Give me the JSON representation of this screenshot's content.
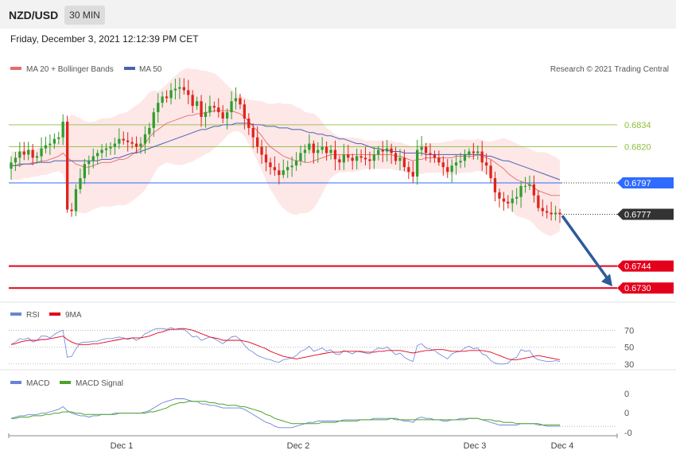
{
  "header": {
    "pair": "NZD/USD",
    "timeframe": "30 MIN",
    "datetime": "Friday, December 3, 2021 12:12:39 PM CET"
  },
  "legend": {
    "ma20": "MA 20 + Bollinger Bands",
    "ma50": "MA 50",
    "credit": "Research © 2021 Trading Central",
    "rsi": "RSI",
    "rsi9": "9MA",
    "macd": "MACD",
    "macd_signal": "MACD Signal"
  },
  "colors": {
    "bull": "#2e9e2e",
    "bear": "#e0231c",
    "ma20": "#e86a6a",
    "ma50": "#4a63b0",
    "band": "#fde3e3",
    "resistance": "#8dbf3c",
    "pivot": "#2f6bff",
    "current": "#333333",
    "support": "#e3001b",
    "arrow": "#2e5b9a",
    "rsi": "#6b83d6",
    "rsi9": "#e3001b",
    "macd": "#6b83d6",
    "macd_signal": "#4ca22a"
  },
  "chart_data": [
    {
      "type": "candlestick",
      "title": "NZD/USD",
      "timeframe": "30 MIN",
      "ylim": [
        0.6722,
        0.6874
      ],
      "levels": [
        {
          "label": "0.6834",
          "value": 0.6834,
          "kind": "resistance"
        },
        {
          "label": "0.6820",
          "value": 0.682,
          "kind": "resistance"
        },
        {
          "label": "0.6797",
          "value": 0.6797,
          "kind": "pivot"
        },
        {
          "label": "0.6777",
          "value": 0.6777,
          "kind": "current"
        },
        {
          "label": "0.6744",
          "value": 0.6744,
          "kind": "support"
        },
        {
          "label": "0.6730",
          "value": 0.673,
          "kind": "support"
        }
      ],
      "arrow": {
        "from": 0.6777,
        "to": 0.6731,
        "direction": "down"
      },
      "x_labels": [
        "Dec 1",
        "Dec 2",
        "Dec 3",
        "Dec 4"
      ],
      "close": [
        0.681,
        0.6813,
        0.6817,
        0.6815,
        0.6818,
        0.6813,
        0.6814,
        0.6819,
        0.6821,
        0.6822,
        0.6825,
        0.6826,
        0.6836,
        0.678,
        0.6779,
        0.6793,
        0.68,
        0.6809,
        0.6811,
        0.6814,
        0.6816,
        0.6818,
        0.6819,
        0.682,
        0.6822,
        0.6825,
        0.6824,
        0.6823,
        0.6822,
        0.682,
        0.6822,
        0.6828,
        0.6832,
        0.6842,
        0.6848,
        0.6852,
        0.6851,
        0.6856,
        0.6857,
        0.6858,
        0.6856,
        0.6853,
        0.6846,
        0.6849,
        0.6839,
        0.6842,
        0.6846,
        0.6845,
        0.6842,
        0.6838,
        0.6842,
        0.6849,
        0.6851,
        0.6847,
        0.6838,
        0.6832,
        0.6826,
        0.682,
        0.6815,
        0.681,
        0.6807,
        0.6805,
        0.6802,
        0.6805,
        0.6807,
        0.6808,
        0.6811,
        0.6816,
        0.6818,
        0.6822,
        0.6816,
        0.6818,
        0.682,
        0.6816,
        0.6818,
        0.6812,
        0.681,
        0.6815,
        0.6813,
        0.6811,
        0.6814,
        0.6813,
        0.6812,
        0.6811,
        0.6815,
        0.6818,
        0.6817,
        0.6819,
        0.6816,
        0.6811,
        0.6813,
        0.6807,
        0.6804,
        0.6801,
        0.6818,
        0.682,
        0.6816,
        0.6815,
        0.6813,
        0.681,
        0.6807,
        0.6804,
        0.6808,
        0.681,
        0.6811,
        0.6815,
        0.6817,
        0.6816,
        0.6817,
        0.681,
        0.6808,
        0.68,
        0.6791,
        0.6787,
        0.6785,
        0.6784,
        0.6787,
        0.6788,
        0.6795,
        0.6795,
        0.6796,
        0.6789,
        0.6781,
        0.6779,
        0.6778,
        0.6777,
        0.6778,
        0.6777
      ],
      "ma20": [
        0.6808,
        0.6808,
        0.6808,
        0.6809,
        0.6809,
        0.681,
        0.681,
        0.6811,
        0.6811,
        0.6812,
        0.6813,
        0.6814,
        0.6816,
        0.6813,
        0.6811,
        0.6809,
        0.6808,
        0.6807,
        0.6807,
        0.6808,
        0.6809,
        0.681,
        0.681,
        0.681,
        0.6811,
        0.6812,
        0.6812,
        0.6813,
        0.6815,
        0.6817,
        0.6819,
        0.6822,
        0.6826,
        0.6829,
        0.6831,
        0.6833,
        0.6835,
        0.6836,
        0.6837,
        0.6838,
        0.6839,
        0.684,
        0.684,
        0.6841,
        0.6841,
        0.6842,
        0.6842,
        0.6843,
        0.6843,
        0.6843,
        0.6843,
        0.6843,
        0.6842,
        0.6841,
        0.6839,
        0.6836,
        0.6833,
        0.683,
        0.6827,
        0.6823,
        0.682,
        0.6818,
        0.6816,
        0.6814,
        0.6813,
        0.6812,
        0.6811,
        0.6811,
        0.681,
        0.681,
        0.6811,
        0.6812,
        0.6813,
        0.6814,
        0.6815,
        0.6815,
        0.6815,
        0.6815,
        0.6815,
        0.6815,
        0.6815,
        0.6815,
        0.6815,
        0.6815,
        0.6815,
        0.6815,
        0.6815,
        0.6815,
        0.6815,
        0.6814,
        0.6814,
        0.6813,
        0.6812,
        0.6811,
        0.6812,
        0.6812,
        0.6813,
        0.6813,
        0.6813,
        0.6813,
        0.6813,
        0.6813,
        0.6813,
        0.6814,
        0.6814,
        0.6814,
        0.6814,
        0.6814,
        0.6815,
        0.6814,
        0.6813,
        0.6812,
        0.681,
        0.6808,
        0.6806,
        0.6803,
        0.6801,
        0.6799,
        0.6798,
        0.6797,
        0.6796,
        0.6794,
        0.6792,
        0.6791,
        0.679,
        0.6789,
        0.6789,
        0.6789
      ],
      "ma50": [
        0.6808,
        0.6808,
        0.6809,
        0.6809,
        0.6809,
        0.6809,
        0.681,
        0.681,
        0.681,
        0.681,
        0.6811,
        0.6811,
        0.6811,
        0.6811,
        0.6811,
        0.6811,
        0.6811,
        0.6811,
        0.6811,
        0.6811,
        0.6811,
        0.6812,
        0.6812,
        0.6812,
        0.6813,
        0.6813,
        0.6814,
        0.6815,
        0.6816,
        0.6816,
        0.6817,
        0.6818,
        0.6819,
        0.682,
        0.6821,
        0.6822,
        0.6823,
        0.6824,
        0.6825,
        0.6826,
        0.6827,
        0.6828,
        0.6829,
        0.683,
        0.6831,
        0.6831,
        0.6832,
        0.6833,
        0.6833,
        0.6834,
        0.6834,
        0.6834,
        0.6835,
        0.6835,
        0.6835,
        0.6835,
        0.6834,
        0.6834,
        0.6834,
        0.6833,
        0.6833,
        0.6833,
        0.6832,
        0.6832,
        0.6832,
        0.6831,
        0.6831,
        0.6831,
        0.683,
        0.6829,
        0.6829,
        0.6828,
        0.6828,
        0.6827,
        0.6827,
        0.6826,
        0.6825,
        0.6825,
        0.6824,
        0.6823,
        0.6822,
        0.6822,
        0.6821,
        0.682,
        0.6819,
        0.6819,
        0.6818,
        0.6818,
        0.6817,
        0.6817,
        0.6817,
        0.6816,
        0.6816,
        0.6816,
        0.6816,
        0.6816,
        0.6815,
        0.6815,
        0.6815,
        0.6815,
        0.6815,
        0.6815,
        0.6815,
        0.6815,
        0.6815,
        0.6815,
        0.6815,
        0.6815,
        0.6815,
        0.6815,
        0.6814,
        0.6814,
        0.6813,
        0.6812,
        0.6811,
        0.6811,
        0.681,
        0.6809,
        0.6808,
        0.6807,
        0.6806,
        0.6805,
        0.6804,
        0.6803,
        0.6802,
        0.6801,
        0.68,
        0.6799
      ]
    },
    {
      "type": "line",
      "title": "RSI",
      "levels": [
        70,
        50,
        30
      ],
      "ylim": [
        26,
        75
      ],
      "series": [
        {
          "name": "RSI",
          "values": [
            53,
            56,
            60,
            59,
            61,
            56,
            58,
            63,
            63,
            61,
            65,
            68,
            70,
            38,
            39,
            48,
            55,
            56,
            56,
            57,
            57,
            59,
            60,
            60,
            61,
            62,
            61,
            59,
            61,
            58,
            61,
            66,
            68,
            71,
            72,
            72,
            71,
            73,
            71,
            71,
            71,
            67,
            62,
            63,
            58,
            60,
            62,
            60,
            57,
            54,
            58,
            62,
            63,
            59,
            52,
            47,
            44,
            40,
            38,
            36,
            35,
            33,
            32,
            35,
            36,
            37,
            40,
            45,
            47,
            51,
            45,
            47,
            49,
            45,
            47,
            42,
            41,
            46,
            44,
            42,
            45,
            44,
            43,
            42,
            46,
            49,
            48,
            50,
            46,
            41,
            43,
            38,
            35,
            33,
            52,
            54,
            49,
            48,
            46,
            42,
            39,
            36,
            42,
            44,
            45,
            49,
            51,
            48,
            49,
            42,
            40,
            34,
            31,
            30,
            30,
            31,
            36,
            38,
            47,
            45,
            46,
            38,
            35,
            34,
            33,
            33,
            34,
            33
          ]
        },
        {
          "name": "9MA",
          "values": [
            53,
            54,
            56,
            57,
            58,
            58,
            58,
            59,
            59,
            60,
            61,
            62,
            63,
            59,
            56,
            54,
            53,
            53,
            53,
            54,
            54,
            55,
            56,
            57,
            58,
            59,
            60,
            60,
            61,
            61,
            61,
            62,
            63,
            65,
            67,
            68,
            70,
            71,
            71,
            72,
            72,
            71,
            70,
            68,
            66,
            64,
            62,
            61,
            60,
            58,
            58,
            58,
            58,
            58,
            57,
            56,
            54,
            52,
            50,
            48,
            45,
            43,
            41,
            39,
            38,
            37,
            36,
            37,
            38,
            39,
            40,
            41,
            42,
            43,
            44,
            44,
            44,
            45,
            45,
            45,
            45,
            45,
            44,
            44,
            44,
            45,
            45,
            46,
            46,
            46,
            46,
            45,
            44,
            43,
            44,
            45,
            46,
            46,
            47,
            47,
            47,
            46,
            45,
            45,
            45,
            45,
            46,
            46,
            46,
            46,
            45,
            44,
            42,
            40,
            38,
            36,
            35,
            35,
            36,
            37,
            38,
            39,
            40,
            39,
            38,
            37,
            36,
            35
          ]
        }
      ]
    },
    {
      "type": "line",
      "title": "MACD",
      "tick_labels": [
        "0",
        "0",
        "-0"
      ],
      "ylim": [
        -0.0012,
        0.0022
      ],
      "series": [
        {
          "name": "MACD",
          "values": [
            0.0,
            0.0001,
            0.0002,
            0.0002,
            0.0003,
            0.0003,
            0.0003,
            0.0004,
            0.0004,
            0.0005,
            0.0006,
            0.0007,
            0.0009,
            0.0006,
            0.0004,
            0.0003,
            0.0002,
            0.0002,
            0.0001,
            0.0002,
            0.0002,
            0.0003,
            0.0003,
            0.0003,
            0.0004,
            0.0004,
            0.0004,
            0.0004,
            0.0004,
            0.0004,
            0.0004,
            0.0005,
            0.0006,
            0.0008,
            0.001,
            0.0012,
            0.0013,
            0.0014,
            0.0015,
            0.0015,
            0.0015,
            0.0014,
            0.0013,
            0.0013,
            0.0011,
            0.0011,
            0.001,
            0.001,
            0.0009,
            0.0008,
            0.0008,
            0.0008,
            0.0008,
            0.0008,
            0.0007,
            0.0005,
            0.0003,
            0.0001,
            -0.0001,
            -0.0003,
            -0.0004,
            -0.0006,
            -0.0007,
            -0.0007,
            -0.0007,
            -0.0007,
            -0.0006,
            -0.0005,
            -0.0004,
            -0.0003,
            -0.0003,
            -0.0002,
            -0.0002,
            -0.0002,
            -0.0002,
            -0.0002,
            -0.0002,
            -0.0001,
            -0.0001,
            -0.0001,
            -0.0001,
            -0.0001,
            -0.0001,
            -0.0001,
            0.0,
            0.0,
            0.0,
            0.0,
            0.0,
            -0.0001,
            -0.0001,
            -0.0002,
            -0.0002,
            -0.0003,
            0.0,
            0.0001,
            0.0,
            0.0,
            -0.0001,
            -0.0001,
            -0.0002,
            -0.0002,
            -0.0001,
            -0.0001,
            0.0,
            0.0,
            0.0,
            0.0,
            0.0,
            -0.0001,
            -0.0002,
            -0.0003,
            -0.0004,
            -0.0005,
            -0.0005,
            -0.0005,
            -0.0005,
            -0.0005,
            -0.0004,
            -0.0004,
            -0.0004,
            -0.0004,
            -0.0005,
            -0.0005,
            -0.0006,
            -0.0006,
            -0.0006,
            -0.0006
          ]
        },
        {
          "name": "MACD Signal",
          "values": [
            0.0,
            0.0,
            0.0001,
            0.0001,
            0.0001,
            0.0002,
            0.0002,
            0.0002,
            0.0003,
            0.0003,
            0.0004,
            0.0004,
            0.0005,
            0.0005,
            0.0005,
            0.0004,
            0.0004,
            0.0003,
            0.0003,
            0.0003,
            0.0003,
            0.0003,
            0.0003,
            0.0003,
            0.0003,
            0.0004,
            0.0004,
            0.0004,
            0.0004,
            0.0004,
            0.0004,
            0.0004,
            0.0005,
            0.0005,
            0.0006,
            0.0007,
            0.0008,
            0.001,
            0.0011,
            0.0012,
            0.0012,
            0.0013,
            0.0013,
            0.0013,
            0.0013,
            0.0013,
            0.0012,
            0.0012,
            0.0011,
            0.0011,
            0.001,
            0.001,
            0.001,
            0.0009,
            0.0009,
            0.0008,
            0.0007,
            0.0006,
            0.0005,
            0.0003,
            0.0002,
            0.0,
            -0.0001,
            -0.0002,
            -0.0003,
            -0.0004,
            -0.0004,
            -0.0004,
            -0.0004,
            -0.0004,
            -0.0004,
            -0.0004,
            -0.0003,
            -0.0003,
            -0.0003,
            -0.0003,
            -0.0002,
            -0.0002,
            -0.0002,
            -0.0002,
            -0.0002,
            -0.0001,
            -0.0001,
            -0.0001,
            -0.0001,
            -0.0001,
            -0.0001,
            -0.0001,
            0.0,
            0.0,
            -0.0001,
            -0.0001,
            -0.0001,
            -0.0001,
            -0.0001,
            -0.0001,
            -0.0001,
            -0.0001,
            -0.0001,
            -0.0001,
            -0.0001,
            -0.0001,
            -0.0001,
            -0.0001,
            -0.0001,
            -0.0001,
            0.0,
            0.0,
            0.0,
            -0.0001,
            -0.0001,
            -0.0001,
            -0.0002,
            -0.0002,
            -0.0003,
            -0.0003,
            -0.0003,
            -0.0004,
            -0.0004,
            -0.0004,
            -0.0004,
            -0.0004,
            -0.0004,
            -0.0005,
            -0.0005,
            -0.0005,
            -0.0005,
            -0.0005
          ]
        }
      ]
    }
  ]
}
